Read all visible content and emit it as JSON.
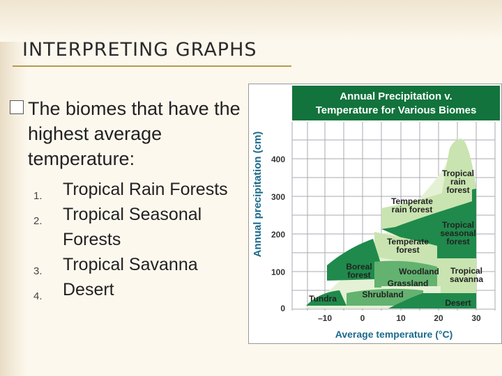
{
  "slide": {
    "title": "INTERPRETING GRAPHS",
    "bullet": "The biomes that have the highest average temperature:",
    "items": [
      {
        "num": "1.",
        "text": "Tropical Rain Forests"
      },
      {
        "num": "2.",
        "text": "Tropical Seasonal Forests"
      },
      {
        "num": "3.",
        "text": "Tropical Savanna"
      },
      {
        "num": "4.",
        "text": "Desert"
      }
    ]
  },
  "figure": {
    "title_line1": "Annual Precipitation v.",
    "title_line2": "Temperature for Various Biomes",
    "ylabel": "Annual precipitation (cm)",
    "xlabel": "Average temperature (°C)",
    "yticks": [
      "400",
      "300",
      "200",
      "100",
      "0"
    ],
    "xticks": [
      "–10",
      "0",
      "10",
      "20",
      "30"
    ],
    "biomes": {
      "tropical_rain_forest": "Tropical rain forest",
      "temperate_rain_forest": "Temperate rain forest",
      "tropical_seasonal_forest": "Tropical seasonal forest",
      "temperate_forest": "Temperate forest",
      "boreal_forest": "Boreal forest",
      "woodland": "Woodland",
      "tropical_savanna": "Tropical savanna",
      "grassland": "Grassland",
      "shrubland": "Shrubland",
      "tundra": "Tundra",
      "desert": "Desert"
    },
    "colors": {
      "header": "#12733c",
      "dark_green": "#1f8a4c",
      "mid_green": "#63b270",
      "light_green": "#c9e4b0",
      "pale_green": "#e5f1d4",
      "grid": "#a8aab0"
    }
  }
}
